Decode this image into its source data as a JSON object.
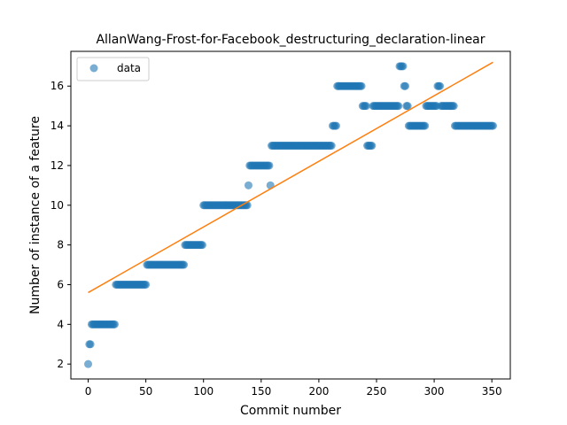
{
  "chart_data": {
    "type": "scatter",
    "title": "AllanWang-Frost-for-Facebook_destructuring_declaration-linear",
    "xlabel": "Commit number",
    "ylabel": "Number of instance of a feature",
    "xlim": [
      -15,
      366
    ],
    "ylim": [
      1.25,
      17.75
    ],
    "xticks": [
      0,
      50,
      100,
      150,
      200,
      250,
      300,
      350
    ],
    "yticks": [
      2,
      4,
      6,
      8,
      10,
      12,
      14,
      16
    ],
    "grid": false,
    "legend": {
      "position": "top-left",
      "entries": [
        "data"
      ]
    },
    "colors": {
      "data": "#1f77b4",
      "fit": "#ff7f0e"
    },
    "series": [
      {
        "name": "data",
        "kind": "points",
        "segments": [
          {
            "from": 0,
            "to": 0,
            "y": 2
          },
          {
            "from": 1,
            "to": 2,
            "y": 3
          },
          {
            "from": 3,
            "to": 23,
            "y": 4
          },
          {
            "from": 24,
            "to": 50,
            "y": 6
          },
          {
            "from": 51,
            "to": 83,
            "y": 7
          },
          {
            "from": 84,
            "to": 99,
            "y": 8
          },
          {
            "from": 100,
            "to": 138,
            "y": 10
          },
          {
            "from": 139,
            "to": 139,
            "y": 11
          },
          {
            "from": 140,
            "to": 157,
            "y": 12
          },
          {
            "from": 158,
            "to": 158,
            "y": 11
          },
          {
            "from": 159,
            "to": 211,
            "y": 13
          },
          {
            "from": 212,
            "to": 215,
            "y": 14
          },
          {
            "from": 216,
            "to": 237,
            "y": 16
          },
          {
            "from": 238,
            "to": 241,
            "y": 15
          },
          {
            "from": 242,
            "to": 246,
            "y": 13
          },
          {
            "from": 247,
            "to": 269,
            "y": 15
          },
          {
            "from": 270,
            "to": 273,
            "y": 17
          },
          {
            "from": 274,
            "to": 275,
            "y": 16
          },
          {
            "from": 276,
            "to": 277,
            "y": 15
          },
          {
            "from": 278,
            "to": 292,
            "y": 14
          },
          {
            "from": 293,
            "to": 302,
            "y": 15
          },
          {
            "from": 303,
            "to": 305,
            "y": 16
          },
          {
            "from": 306,
            "to": 317,
            "y": 15
          },
          {
            "from": 318,
            "to": 351,
            "y": 14
          }
        ]
      },
      {
        "name": "",
        "kind": "line",
        "x": [
          0,
          351
        ],
        "y": [
          5.6,
          17.2
        ]
      }
    ]
  }
}
